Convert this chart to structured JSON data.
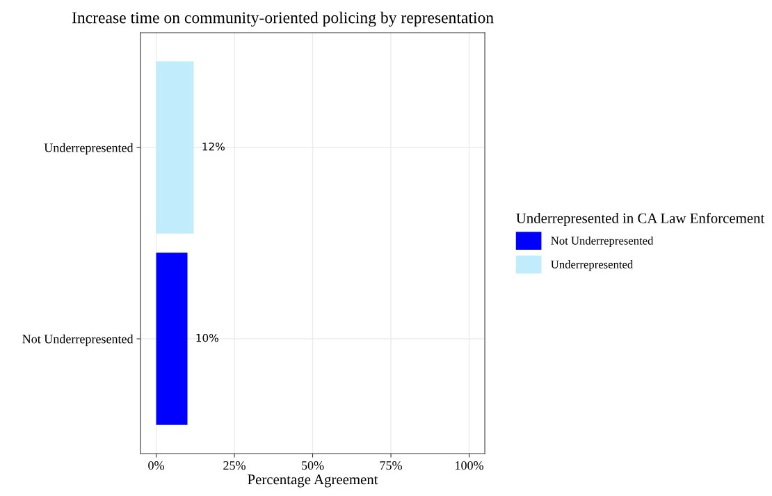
{
  "chart_data": {
    "type": "bar",
    "orientation": "horizontal",
    "title": "Increase time on community-oriented policing by representation",
    "xlabel": "Percentage Agreement",
    "legend_title": "Underrepresented in CA Law Enforcement",
    "categories": [
      "Underrepresented",
      "Not Underrepresented"
    ],
    "series": [
      {
        "name": "Not Underrepresented",
        "color": "#0000ff",
        "values": [
          null,
          10
        ],
        "value_labels": [
          null,
          "10%"
        ]
      },
      {
        "name": "Underrepresented",
        "color": "#c0ecfc",
        "values": [
          12,
          null
        ],
        "value_labels": [
          "12%",
          null
        ]
      }
    ],
    "xlim": [
      -5,
      105
    ],
    "xticks": [
      {
        "value": 0,
        "label": "0%"
      },
      {
        "value": 25,
        "label": "25%"
      },
      {
        "value": 50,
        "label": "50%"
      },
      {
        "value": 75,
        "label": "75%"
      },
      {
        "value": 100,
        "label": "100%"
      }
    ],
    "grid": true,
    "legend": "right"
  }
}
